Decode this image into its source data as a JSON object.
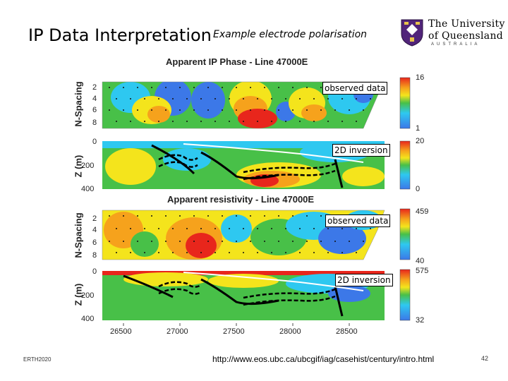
{
  "slide": {
    "title": "IP Data Interpretation",
    "subtitle": "Example electrode polarisation",
    "footer_left": "ERTH2020",
    "footer_url": "http://www.eos.ubc.ca/ubcgif/iag/casehist/century/intro.html",
    "page_number": "42"
  },
  "logo": {
    "line1": "The University",
    "line2": "of Queensland",
    "line3": "AUSTRALIA",
    "icon": "uq-crest-icon"
  },
  "figure": {
    "phase_title": "Apparent IP Phase - Line 47000E",
    "resistivity_title": "Apparent resistivity - Line 47000E",
    "nspacing_label": "N-Spacing",
    "depth_label": "Z (m)",
    "nspacing_ticks": [
      "2",
      "4",
      "6",
      "8"
    ],
    "depth_ticks": [
      "0",
      "200",
      "400"
    ],
    "x_ticks": [
      "26500",
      "27000",
      "27500",
      "28000",
      "28500"
    ],
    "panels": [
      {
        "callout": "observed data",
        "cb_max": "16",
        "cb_min": "1"
      },
      {
        "callout": "2D inversion",
        "cb_max": "20",
        "cb_min": "0"
      },
      {
        "callout": "observed data",
        "cb_max": "459",
        "cb_min": "40"
      },
      {
        "callout": "2D inversion",
        "cb_max": "575",
        "cb_min": "32"
      }
    ]
  },
  "colors": {
    "red": "#e8261c",
    "orange": "#f6a21c",
    "yellow": "#f4e41c",
    "green": "#48c048",
    "cyan": "#2ec8f0",
    "blue": "#3c78e8"
  }
}
